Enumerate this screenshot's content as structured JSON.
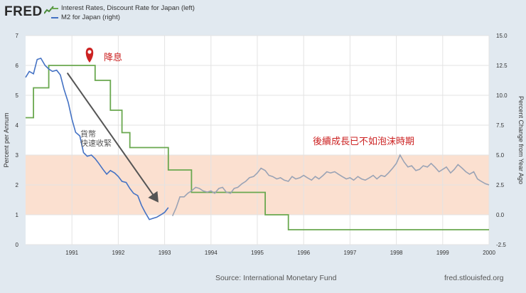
{
  "header": {
    "logo_text": "FRED",
    "legend": [
      {
        "label": "Interest Rates, Discount Rate for Japan (left)",
        "color": "#6aa84f"
      },
      {
        "label": "M2 for Japan (right)",
        "color": "#4472c4"
      }
    ]
  },
  "footer": {
    "source": "Source: International Monetary Fund",
    "url": "fred.stlouisfed.org"
  },
  "chart_data": {
    "type": "line",
    "ylabel_left": "Percent per Annum",
    "ylabel_right": "Percent Change from Year Ago",
    "ylim_left": [
      0,
      7
    ],
    "ylim_right": [
      -2.5,
      15
    ],
    "yticks_left": [
      "0",
      "1",
      "2",
      "3",
      "4",
      "5",
      "6",
      "7"
    ],
    "yticks_right": [
      "-2.5",
      "0.0",
      "2.5",
      "5.0",
      "7.5",
      "10.0",
      "12.5",
      "15.0"
    ],
    "xlim": [
      1990.0,
      2000.0
    ],
    "xticks": [
      "1991",
      "1992",
      "1993",
      "1994",
      "1995",
      "1996",
      "1997",
      "1998",
      "1999",
      "2000"
    ],
    "grid": true,
    "shaded_band_left": [
      1,
      3
    ],
    "shaded_band_color": "#fbe0d0",
    "annotations": {
      "pin_label": "降息",
      "pin_x": 1991.38,
      "arrow_label": "貨幣\n快速收緊",
      "arrow_from": [
        1990.9,
        5.75
      ],
      "arrow_to": [
        1992.85,
        1.45
      ],
      "note": "後續成長已不如泡沫時期"
    },
    "series": [
      {
        "name": "Interest Rates, Discount Rate for Japan (left)",
        "axis": "left",
        "color": "#6aa84f",
        "points": [
          [
            1990.0,
            4.25
          ],
          [
            1990.17,
            4.25
          ],
          [
            1990.17,
            5.25
          ],
          [
            1990.5,
            5.25
          ],
          [
            1990.5,
            6.0
          ],
          [
            1991.5,
            6.0
          ],
          [
            1991.5,
            5.5
          ],
          [
            1991.83,
            5.5
          ],
          [
            1991.83,
            4.5
          ],
          [
            1992.08,
            4.5
          ],
          [
            1992.08,
            3.75
          ],
          [
            1992.25,
            3.75
          ],
          [
            1992.25,
            3.25
          ],
          [
            1993.08,
            3.25
          ],
          [
            1993.08,
            2.5
          ],
          [
            1993.58,
            2.5
          ],
          [
            1993.58,
            1.75
          ],
          [
            1995.17,
            1.75
          ],
          [
            1995.17,
            1.0
          ],
          [
            1995.67,
            1.0
          ],
          [
            1995.67,
            0.5
          ],
          [
            2000.0,
            0.5
          ]
        ]
      },
      {
        "name": "M2 for Japan (right)",
        "axis": "right",
        "color": "#4472c4",
        "fade_color": "#9aa3b5",
        "fade_after": 1993.1,
        "points": [
          [
            1990.0,
            11.5
          ],
          [
            1990.08,
            12.0
          ],
          [
            1990.17,
            11.8
          ],
          [
            1990.25,
            13.0
          ],
          [
            1990.33,
            13.1
          ],
          [
            1990.42,
            12.5
          ],
          [
            1990.5,
            12.2
          ],
          [
            1990.58,
            12.0
          ],
          [
            1990.67,
            12.1
          ],
          [
            1990.75,
            11.7
          ],
          [
            1990.83,
            10.5
          ],
          [
            1990.92,
            9.4
          ],
          [
            1991.0,
            8.0
          ],
          [
            1991.08,
            6.9
          ],
          [
            1991.17,
            6.6
          ],
          [
            1991.25,
            5.2
          ],
          [
            1991.33,
            4.9
          ],
          [
            1991.42,
            5.0
          ],
          [
            1991.5,
            4.7
          ],
          [
            1991.58,
            4.3
          ],
          [
            1991.67,
            3.8
          ],
          [
            1991.75,
            3.4
          ],
          [
            1991.83,
            3.7
          ],
          [
            1991.92,
            3.5
          ],
          [
            1992.0,
            3.2
          ],
          [
            1992.08,
            2.8
          ],
          [
            1992.17,
            2.7
          ],
          [
            1992.25,
            2.2
          ],
          [
            1992.33,
            1.8
          ],
          [
            1992.42,
            1.6
          ],
          [
            1992.5,
            0.8
          ],
          [
            1992.58,
            0.2
          ],
          [
            1992.67,
            -0.4
          ],
          [
            1992.75,
            -0.3
          ],
          [
            1992.83,
            -0.2
          ],
          [
            1992.92,
            0.0
          ],
          [
            1993.0,
            0.2
          ],
          [
            1993.08,
            0.6
          ],
          [
            1993.17,
            -0.1
          ],
          [
            1993.25,
            0.6
          ],
          [
            1993.33,
            1.5
          ],
          [
            1993.42,
            1.5
          ],
          [
            1993.5,
            1.8
          ],
          [
            1993.58,
            2.0
          ],
          [
            1993.67,
            2.3
          ],
          [
            1993.75,
            2.2
          ],
          [
            1993.83,
            2.0
          ],
          [
            1993.92,
            1.9
          ],
          [
            1994.0,
            2.0
          ],
          [
            1994.08,
            1.8
          ],
          [
            1994.17,
            2.2
          ],
          [
            1994.25,
            2.3
          ],
          [
            1994.33,
            1.9
          ],
          [
            1994.42,
            1.8
          ],
          [
            1994.5,
            2.2
          ],
          [
            1994.58,
            2.3
          ],
          [
            1994.67,
            2.6
          ],
          [
            1994.75,
            2.8
          ],
          [
            1994.83,
            3.1
          ],
          [
            1994.92,
            3.2
          ],
          [
            1995.0,
            3.5
          ],
          [
            1995.08,
            3.9
          ],
          [
            1995.17,
            3.7
          ],
          [
            1995.25,
            3.3
          ],
          [
            1995.33,
            3.2
          ],
          [
            1995.42,
            3.0
          ],
          [
            1995.5,
            3.1
          ],
          [
            1995.58,
            2.9
          ],
          [
            1995.67,
            2.8
          ],
          [
            1995.75,
            3.2
          ],
          [
            1995.83,
            3.0
          ],
          [
            1995.92,
            3.1
          ],
          [
            1996.0,
            3.3
          ],
          [
            1996.08,
            3.1
          ],
          [
            1996.17,
            2.9
          ],
          [
            1996.25,
            3.2
          ],
          [
            1996.33,
            3.0
          ],
          [
            1996.42,
            3.3
          ],
          [
            1996.5,
            3.6
          ],
          [
            1996.58,
            3.5
          ],
          [
            1996.67,
            3.6
          ],
          [
            1996.75,
            3.4
          ],
          [
            1996.83,
            3.2
          ],
          [
            1996.92,
            3.0
          ],
          [
            1997.0,
            3.1
          ],
          [
            1997.08,
            2.9
          ],
          [
            1997.17,
            3.2
          ],
          [
            1997.25,
            3.0
          ],
          [
            1997.33,
            2.9
          ],
          [
            1997.42,
            3.1
          ],
          [
            1997.5,
            3.3
          ],
          [
            1997.58,
            3.0
          ],
          [
            1997.67,
            3.3
          ],
          [
            1997.75,
            3.2
          ],
          [
            1997.83,
            3.5
          ],
          [
            1997.92,
            3.9
          ],
          [
            1998.0,
            4.3
          ],
          [
            1998.08,
            5.0
          ],
          [
            1998.17,
            4.4
          ],
          [
            1998.25,
            4.0
          ],
          [
            1998.33,
            4.1
          ],
          [
            1998.42,
            3.7
          ],
          [
            1998.5,
            3.8
          ],
          [
            1998.58,
            4.1
          ],
          [
            1998.67,
            4.0
          ],
          [
            1998.75,
            4.3
          ],
          [
            1998.83,
            4.0
          ],
          [
            1998.92,
            3.6
          ],
          [
            1999.0,
            3.8
          ],
          [
            1999.08,
            4.0
          ],
          [
            1999.17,
            3.5
          ],
          [
            1999.25,
            3.8
          ],
          [
            1999.33,
            4.2
          ],
          [
            1999.42,
            3.9
          ],
          [
            1999.5,
            3.6
          ],
          [
            1999.58,
            3.4
          ],
          [
            1999.67,
            3.6
          ],
          [
            1999.75,
            3.0
          ],
          [
            1999.83,
            2.8
          ],
          [
            1999.92,
            2.6
          ],
          [
            2000.0,
            2.5
          ]
        ]
      }
    ]
  }
}
